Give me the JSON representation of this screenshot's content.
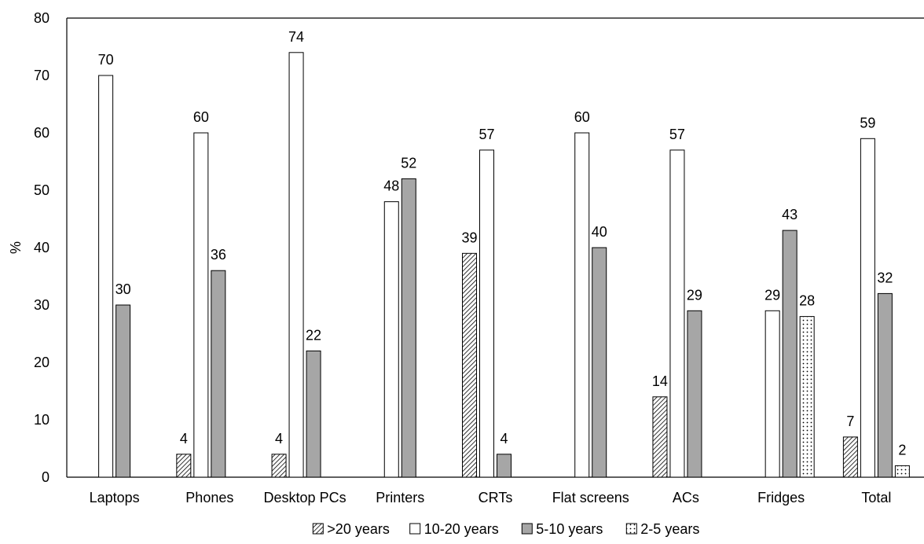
{
  "chart_data": {
    "type": "bar",
    "title": "",
    "xlabel": "",
    "ylabel": "%",
    "ylim": [
      0,
      80
    ],
    "yticks": [
      0,
      10,
      20,
      30,
      40,
      50,
      60,
      70,
      80
    ],
    "grid": false,
    "legend_position": "bottom",
    "categories": [
      "Laptops",
      "Phones",
      "Desktop PCs",
      "Printers",
      "CRTs",
      "Flat screens",
      "ACs",
      "Fridges",
      "Total"
    ],
    "series": [
      {
        "name": ">20 years",
        "pattern": "diagonal-hatch",
        "color": "#000000",
        "values": [
          null,
          4,
          4,
          null,
          39,
          null,
          14,
          null,
          7
        ]
      },
      {
        "name": "10-20 years",
        "pattern": "white",
        "color": "#ffffff",
        "values": [
          70,
          60,
          74,
          48,
          57,
          60,
          57,
          29,
          59
        ]
      },
      {
        "name": "5-10 years",
        "pattern": "gray",
        "color": "#a6a6a6",
        "values": [
          30,
          36,
          22,
          52,
          4,
          40,
          29,
          43,
          32
        ]
      },
      {
        "name": "2-5 years",
        "pattern": "dotted",
        "color": "#ffffff",
        "values": [
          null,
          null,
          null,
          null,
          null,
          null,
          null,
          28,
          2
        ]
      }
    ]
  }
}
